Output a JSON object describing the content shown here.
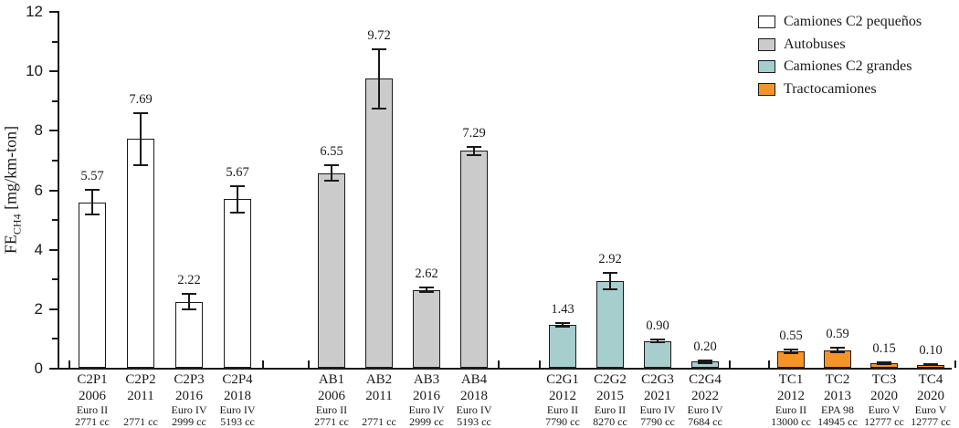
{
  "chart_data": {
    "type": "bar",
    "title": "",
    "ylabel_prefix": "FE",
    "ylabel_sub": "CH4",
    "ylabel_units": " [mg/km-ton]",
    "ylim": [
      0,
      12
    ],
    "y_major_ticks": [
      0,
      2,
      4,
      6,
      8,
      10,
      12
    ],
    "y_minor_ticks": [
      1,
      3,
      5,
      7,
      9,
      11
    ],
    "grid": false,
    "legend_position": "top-right",
    "groups": [
      {
        "name": "Camiones C2 pequeños",
        "color": "#ffffff",
        "bars": [
          {
            "id": "C2P1",
            "year": "2006",
            "standard": "Euro II",
            "displacement": "2771 cc",
            "value": 5.57,
            "error": 0.4,
            "label": "5.57"
          },
          {
            "id": "C2P2",
            "year": "2011",
            "standard": "",
            "displacement": "2771 cc",
            "value": 7.69,
            "error": 0.87,
            "label": "7.69"
          },
          {
            "id": "C2P3",
            "year": "2016",
            "standard": "Euro IV",
            "displacement": "2999 cc",
            "value": 2.22,
            "error": 0.27,
            "label": "2.22"
          },
          {
            "id": "C2P4",
            "year": "2018",
            "standard": "Euro IV",
            "displacement": "5193 cc",
            "value": 5.67,
            "error": 0.45,
            "label": "5.67"
          }
        ]
      },
      {
        "name": "Autobuses",
        "color": "#cbcbcb",
        "bars": [
          {
            "id": "AB1",
            "year": "2006",
            "standard": "Euro II",
            "displacement": "2771 cc",
            "value": 6.55,
            "error": 0.25,
            "label": "6.55"
          },
          {
            "id": "AB2",
            "year": "2011",
            "standard": "",
            "displacement": "2771 cc",
            "value": 9.72,
            "error": 1.0,
            "label": "9.72"
          },
          {
            "id": "AB3",
            "year": "2016",
            "standard": "Euro IV",
            "displacement": "2999 cc",
            "value": 2.62,
            "error": 0.08,
            "label": "2.62"
          },
          {
            "id": "AB4",
            "year": "2018",
            "standard": "Euro IV",
            "displacement": "5193 cc",
            "value": 7.29,
            "error": 0.15,
            "label": "7.29"
          }
        ]
      },
      {
        "name": "Camiones C2 grandes",
        "color": "#a5cecd",
        "bars": [
          {
            "id": "C2G1",
            "year": "2012",
            "standard": "Euro II",
            "displacement": "7790 cc",
            "value": 1.43,
            "error": 0.06,
            "label": "1.43"
          },
          {
            "id": "C2G2",
            "year": "2015",
            "standard": "Euro II",
            "displacement": "8270 cc",
            "value": 2.92,
            "error": 0.28,
            "label": "2.92"
          },
          {
            "id": "C2G3",
            "year": "2021",
            "standard": "Euro IV",
            "displacement": "7790 cc",
            "value": 0.9,
            "error": 0.05,
            "label": "0.90"
          },
          {
            "id": "C2G4",
            "year": "2022",
            "standard": "Euro IV",
            "displacement": "7684 cc",
            "value": 0.2,
            "error": 0.04,
            "label": "0.20"
          }
        ]
      },
      {
        "name": "Tractocamiones",
        "color": "#f79428",
        "bars": [
          {
            "id": "TC1",
            "year": "2012",
            "standard": "Euro II",
            "displacement": "13000 cc",
            "value": 0.55,
            "error": 0.05,
            "label": "0.55"
          },
          {
            "id": "TC2",
            "year": "2013",
            "standard": "EPA 98",
            "displacement": "14945 cc",
            "value": 0.59,
            "error": 0.07,
            "label": "0.59"
          },
          {
            "id": "TC3",
            "year": "2020",
            "standard": "Euro V",
            "displacement": "12777 cc",
            "value": 0.15,
            "error": 0.03,
            "label": "0.15"
          },
          {
            "id": "TC4",
            "year": "2020",
            "standard": "Euro V",
            "displacement": "12777 cc",
            "value": 0.1,
            "error": 0.02,
            "label": "0.10"
          }
        ]
      }
    ]
  }
}
